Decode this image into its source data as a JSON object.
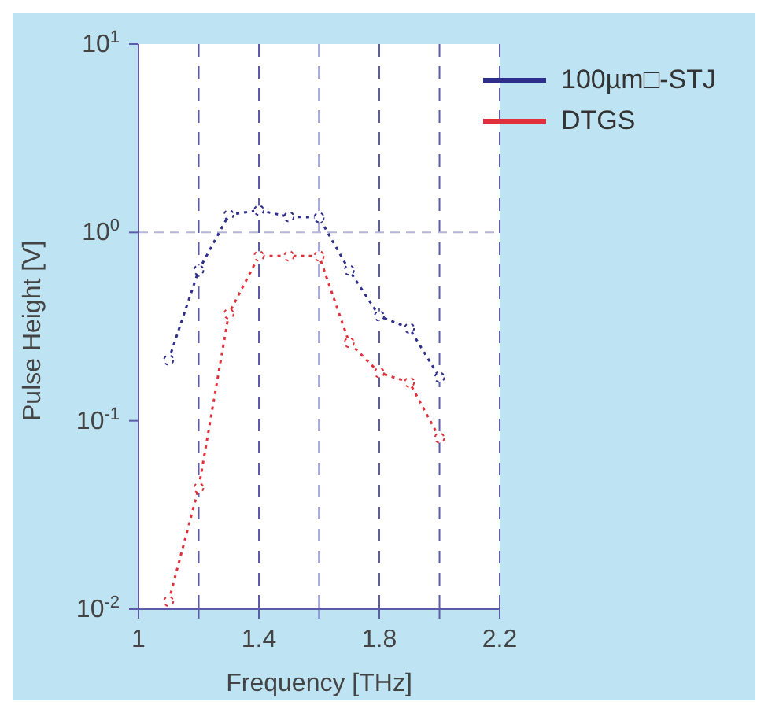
{
  "chart_data": {
    "type": "line",
    "xlabel": "Frequency [THz]",
    "ylabel": "Pulse Height [V]",
    "xlim": [
      1,
      2.2
    ],
    "xticks": [
      1,
      {
        "value": 1.2,
        "label": null
      },
      1.4,
      {
        "value": 1.6,
        "label": null
      },
      1.8,
      {
        "value": 2,
        "label": null
      },
      2.2
    ],
    "ylim": [
      0.01,
      10
    ],
    "yticks": [
      {
        "value": 0.01,
        "label": "10$^{-2}$"
      },
      {
        "value": 0.1,
        "label": "10$^{-1}$"
      },
      {
        "value": 1,
        "label": "10$^{0}$"
      },
      {
        "value": 10,
        "label": "10$^{1}$"
      }
    ],
    "log": "y",
    "grid": "x",
    "legend": "top right",
    "marker": "circle",
    "line_style": "dotted",
    "ref_lines": [
      {
        "axis": "y",
        "value": 1,
        "color": "#b4b4d8",
        "line_style": "dashed"
      }
    ],
    "x": [
      1.1,
      1.2,
      1.3,
      1.4,
      1.5,
      1.6,
      1.7,
      1.8,
      1.9,
      2.0
    ],
    "series": [
      {
        "name": "100µm□-STJ",
        "color": "#2e2e8c",
        "values": [
          0.21,
          0.63,
          1.24,
          1.31,
          1.21,
          1.2,
          0.63,
          0.36,
          0.31,
          0.17
        ]
      },
      {
        "name": "DTGS",
        "color": "#e0303c",
        "values": [
          0.011,
          0.044,
          0.37,
          0.75,
          0.75,
          0.75,
          0.26,
          0.18,
          0.16,
          0.081
        ]
      }
    ]
  }
}
